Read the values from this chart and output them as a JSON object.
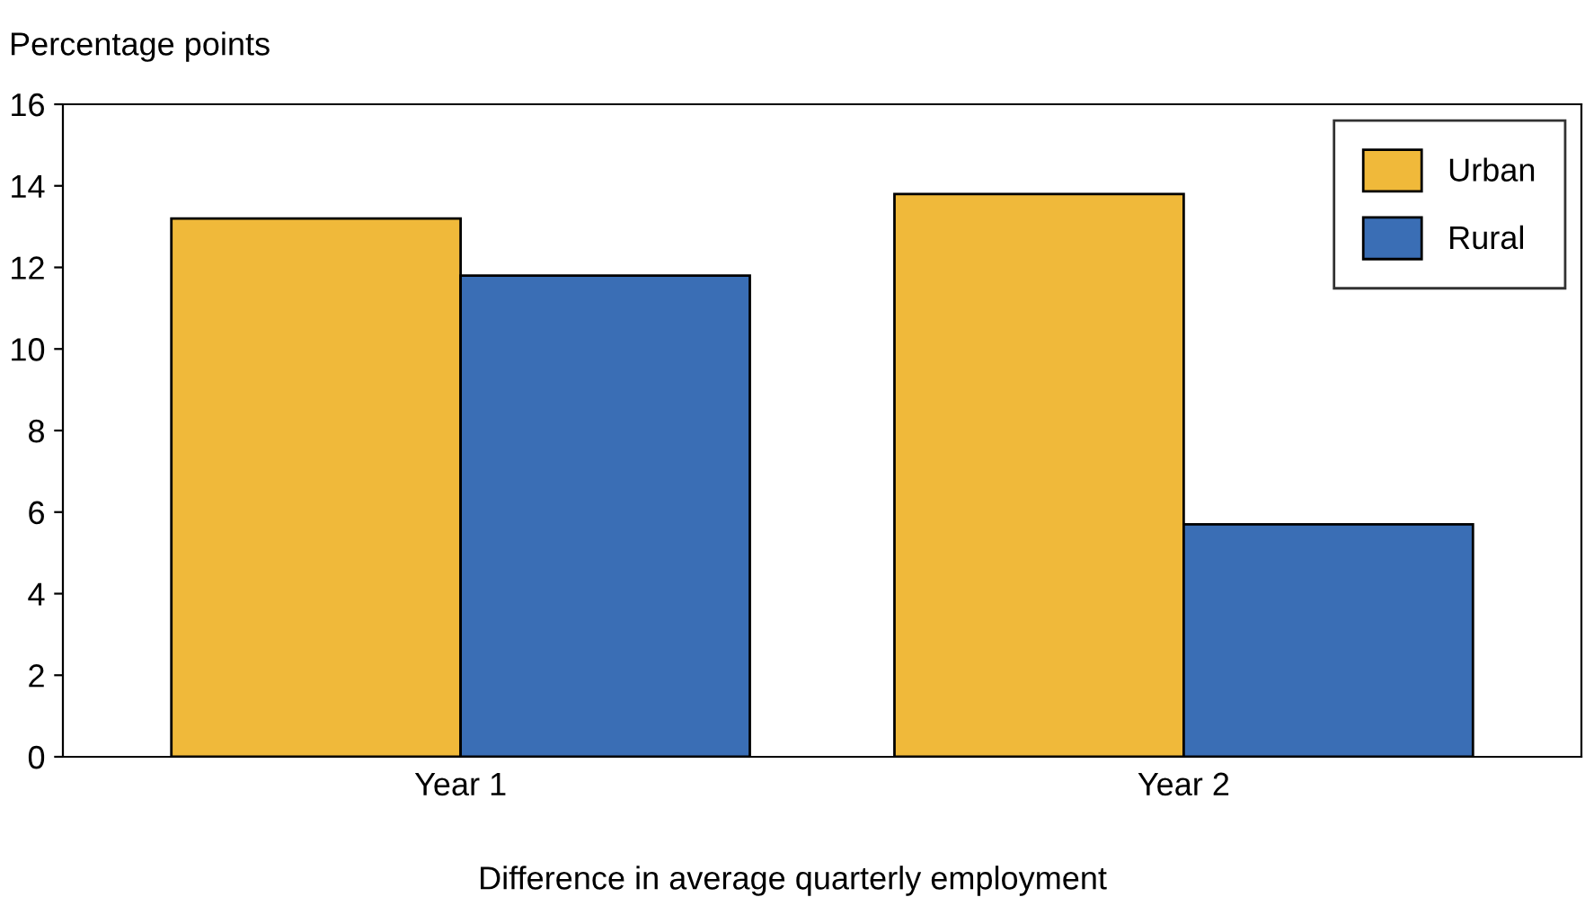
{
  "chart_data": {
    "type": "bar",
    "ylabel": "Percentage points",
    "xlabel": "Difference in average quarterly employment",
    "categories": [
      "Year 1",
      "Year 2"
    ],
    "series": [
      {
        "name": "Urban",
        "color": "#f0b93a",
        "values": [
          13.2,
          13.8
        ]
      },
      {
        "name": "Rural",
        "color": "#3a6eb5",
        "values": [
          11.8,
          5.7
        ]
      }
    ],
    "ylim": [
      0,
      16
    ],
    "yticks": [
      0,
      2,
      4,
      6,
      8,
      10,
      12,
      14,
      16
    ],
    "grid": false,
    "legend": "top right"
  }
}
